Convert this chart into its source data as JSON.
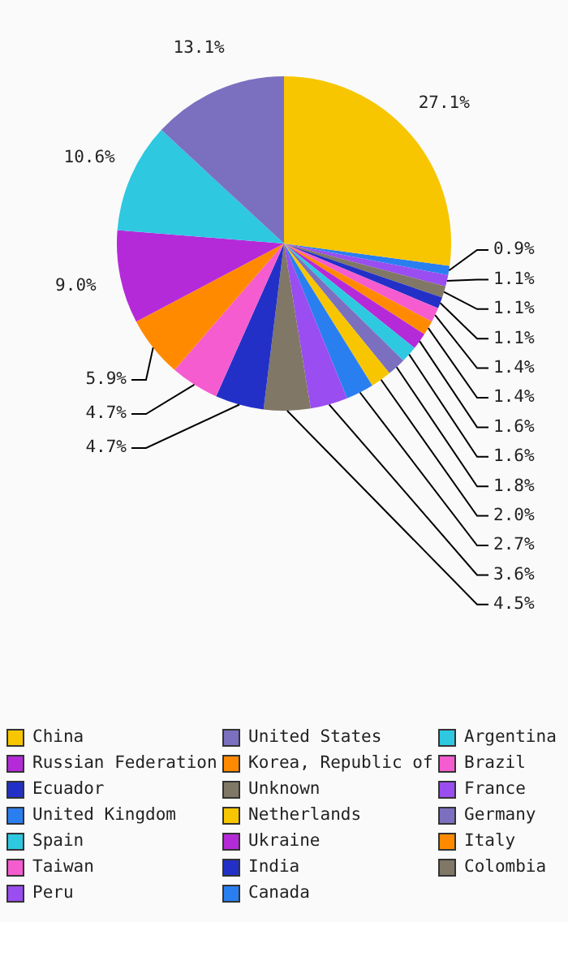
{
  "chart_data": {
    "type": "pie",
    "categories": [
      "China",
      "United States",
      "Argentina",
      "Russian Federation",
      "Korea, Republic of",
      "Brazil",
      "Ecuador",
      "Unknown",
      "France",
      "United Kingdom",
      "Netherlands",
      "Germany",
      "Spain",
      "Ukraine",
      "Italy",
      "Taiwan",
      "India",
      "Colombia",
      "Peru",
      "Canada"
    ],
    "values": [
      27.1,
      13.1,
      10.6,
      9.0,
      5.9,
      4.7,
      4.7,
      4.5,
      3.6,
      2.7,
      2.0,
      1.8,
      1.6,
      1.6,
      1.4,
      1.4,
      1.1,
      1.1,
      1.1,
      0.9
    ],
    "colors": [
      "#f7c600",
      "#7b6fc0",
      "#2ec8e0",
      "#b52ad8",
      "#ff8a00",
      "#f55ccf",
      "#2330c8",
      "#807766",
      "#9a4df0",
      "#2a7ff0",
      "#f7c600",
      "#7b6fc0",
      "#2ec8e0",
      "#b52ad8",
      "#ff8a00",
      "#f55ccf",
      "#2330c8",
      "#807766",
      "#9a4df0",
      "#2a7ff0"
    ],
    "value_labels": [
      "27.1%",
      "13.1%",
      "10.6%",
      "9.0%",
      "5.9%",
      "4.7%",
      "4.7%",
      "4.5%",
      "3.6%",
      "2.7%",
      "2.0%",
      "1.8%",
      "1.6%",
      "1.6%",
      "1.4%",
      "1.4%",
      "1.1%",
      "1.1%",
      "1.1%",
      "0.9%"
    ],
    "legend": "bottom"
  }
}
